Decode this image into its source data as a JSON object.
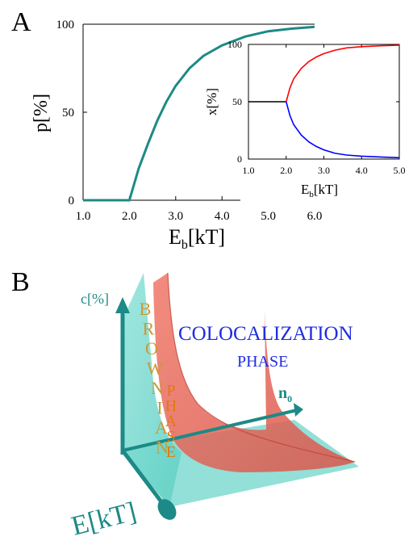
{
  "panel_a": {
    "letter": "A",
    "ylabel": "p[%]",
    "xlabel_main": "E",
    "xlabel_sub": "b",
    "xlabel_tail": "[kT]",
    "xtick_labels": [
      "1.0",
      "2.0",
      "3.0",
      "4.0",
      "5.0",
      "6.0"
    ],
    "ytick_labels": [
      "0",
      "50",
      "100"
    ],
    "inset": {
      "ylabel": "x[%]",
      "xlabel_main": "E",
      "xlabel_sub": "b",
      "xlabel_tail": "[kT]",
      "xtick_labels": [
        "1.0",
        "2.0",
        "3.0",
        "4.0",
        "5.0"
      ],
      "ytick_labels": [
        "0",
        "50",
        "100"
      ]
    }
  },
  "panel_b": {
    "letter": "B",
    "axis_c": "c[%]",
    "axis_n_main": "n",
    "axis_n_sub": "0",
    "axis_e": "E[kT]",
    "brownian_letters": [
      "B",
      "R",
      "O",
      "W",
      "N",
      "I",
      "A",
      "N"
    ],
    "phase_letters": [
      "P",
      "H",
      "A",
      "S",
      "E"
    ],
    "coloc_word": "COLOCALIZATION",
    "coloc_phase": "PHASE"
  },
  "chart_data": [
    {
      "type": "line",
      "panel": "A",
      "xlabel": "Eb[kT]",
      "ylabel": "p[%]",
      "xlim": [
        1.0,
        6.0
      ],
      "ylim": [
        0,
        100
      ],
      "grid": false,
      "series": [
        {
          "color": "#1c8a86",
          "x": [
            1.0,
            2.0,
            2.2,
            2.4,
            2.6,
            2.8,
            3.0,
            3.3,
            3.6,
            4.0,
            4.5,
            5.0,
            5.5,
            6.0
          ],
          "y": [
            0,
            0,
            18,
            32,
            45,
            56,
            65,
            75,
            82,
            88,
            93,
            96,
            97.5,
            98.5
          ]
        }
      ]
    },
    {
      "type": "line",
      "panel": "A-inset",
      "xlabel": "Eb[kT]",
      "ylabel": "x[%]",
      "xlim": [
        1.0,
        5.0
      ],
      "ylim": [
        0,
        100
      ],
      "grid": false,
      "series": [
        {
          "color": "#000000",
          "x": [
            1.0,
            2.0
          ],
          "y": [
            50,
            50
          ]
        },
        {
          "color": "#ff0000",
          "x": [
            2.0,
            2.1,
            2.2,
            2.4,
            2.6,
            2.8,
            3.0,
            3.3,
            3.6,
            4.0,
            4.5,
            5.0
          ],
          "y": [
            50,
            62,
            70,
            79,
            85,
            89,
            92,
            95,
            97,
            98,
            98.8,
            99.3
          ]
        },
        {
          "color": "#0000ff",
          "x": [
            2.0,
            2.1,
            2.2,
            2.4,
            2.6,
            2.8,
            3.0,
            3.3,
            3.6,
            4.0,
            4.5,
            5.0
          ],
          "y": [
            50,
            38,
            30,
            21,
            15,
            11,
            8,
            5,
            3.5,
            2.5,
            1.8,
            1.2
          ]
        }
      ]
    }
  ]
}
